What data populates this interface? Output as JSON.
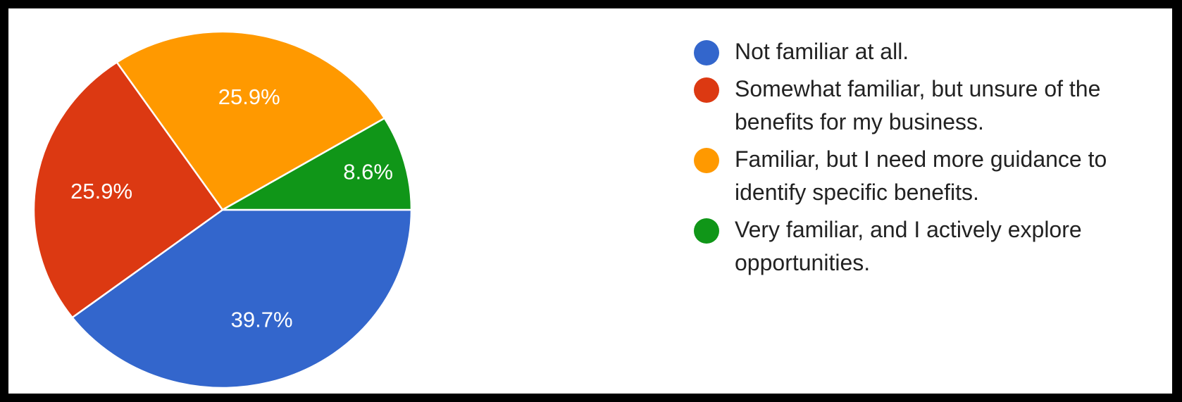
{
  "chart_data": {
    "type": "pie",
    "start_angle_deg": 90,
    "direction": "clockwise",
    "slices": [
      {
        "label": "Not familiar at all.",
        "value": 39.7,
        "display": "39.7%",
        "color": "#3366cc"
      },
      {
        "label": "Somewhat familiar, but unsure of the benefits for my business.",
        "value": 25.9,
        "display": "25.9%",
        "color": "#dc3912"
      },
      {
        "label": "Familiar, but I need more guidance to identify specific benefits.",
        "value": 25.9,
        "display": "25.9%",
        "color": "#ff9900"
      },
      {
        "label": "Very familiar, and I actively explore opportunities.",
        "value": 8.6,
        "display": "8.6%",
        "color": "#109618"
      }
    ],
    "legend_position": "right"
  }
}
